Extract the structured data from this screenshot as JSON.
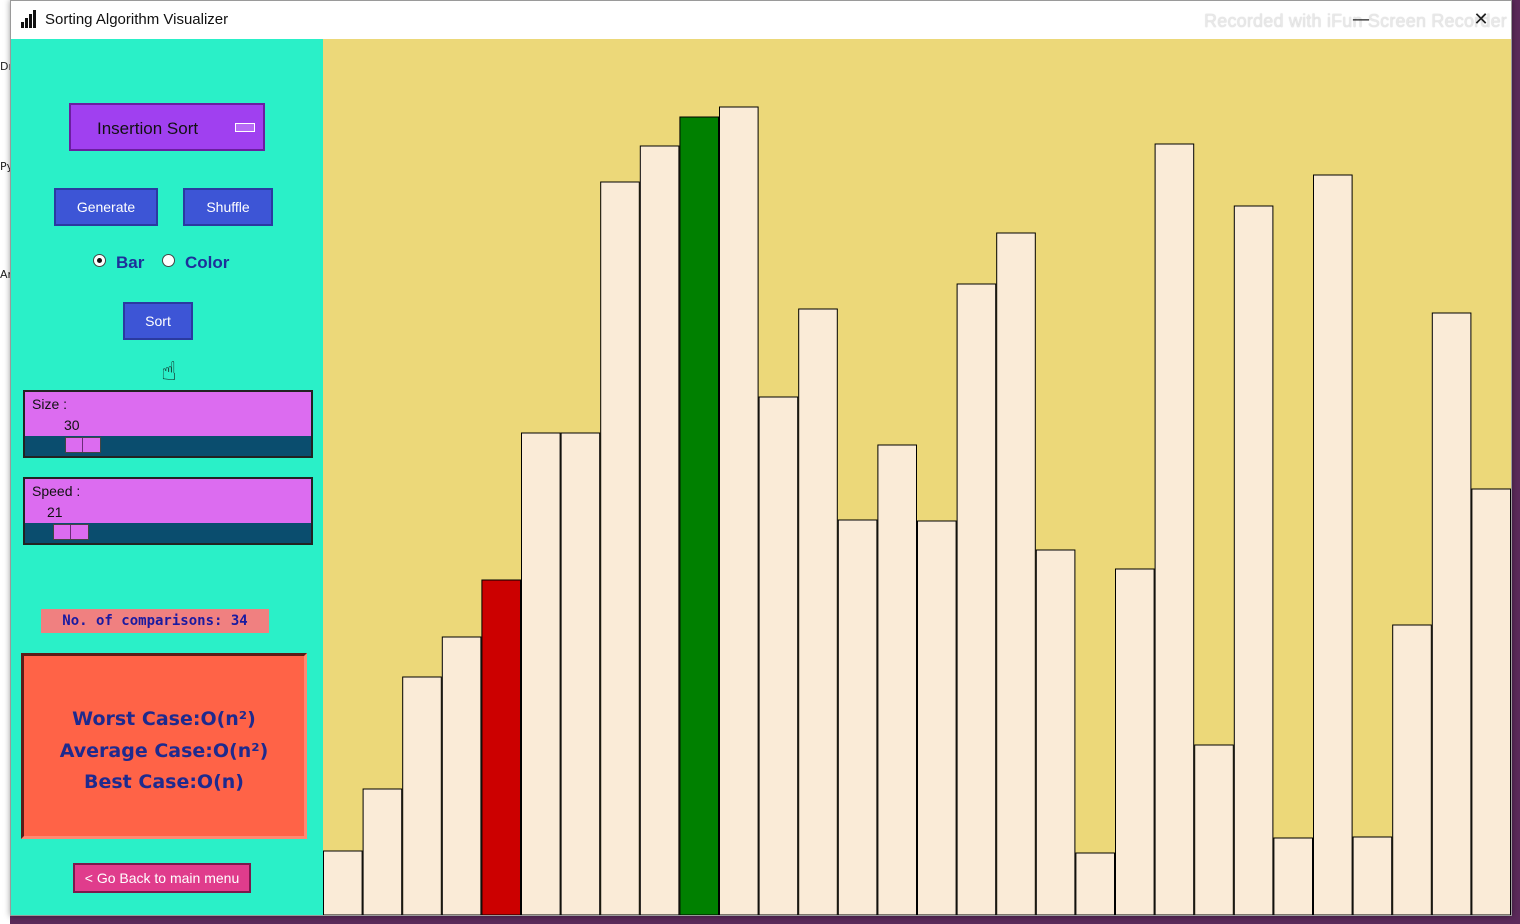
{
  "window": {
    "title": "Sorting Algorithm Visualizer",
    "watermark": "Recorded with iFun Screen Recorder",
    "minimize": "—",
    "close": "✕"
  },
  "controls": {
    "algorithm": "Insertion Sort",
    "generate_label": "Generate",
    "shuffle_label": "Shuffle",
    "radio_bar": "Bar",
    "radio_color": "Color",
    "selected_mode": "Bar",
    "sort_label": "Sort",
    "size_label": "Size :",
    "size_value": "30",
    "size_fraction": 0.15,
    "speed_label": "Speed :",
    "speed_value": "21",
    "speed_fraction": 0.08,
    "comparisons_text": "No. of comparisons: 34",
    "worst_case": "Worst Case:O(n²)",
    "average_case": "Average Case:O(n²)",
    "best_case": "Best Case:O(n)",
    "back_label": "< Go Back to main menu"
  },
  "colors": {
    "panel_bg": "#2af0c8",
    "canvas_bg": "#ecd879",
    "bar_default": "#faebd7",
    "bar_compare": "#cc0000",
    "bar_active": "#008000"
  },
  "chart_data": {
    "type": "bar",
    "bar_count": 30,
    "values": [
      64,
      126,
      238,
      278,
      335,
      482,
      482,
      733,
      769,
      798,
      808,
      518,
      606,
      395,
      470,
      394,
      631,
      682,
      365,
      62,
      346,
      771,
      170,
      709,
      77,
      740,
      78,
      290,
      602,
      426
    ],
    "highlight": [
      {
        "index": 4,
        "color": "#cc0000"
      },
      {
        "index": 9,
        "color": "#008000"
      }
    ],
    "ylim": [
      0,
      876
    ]
  }
}
